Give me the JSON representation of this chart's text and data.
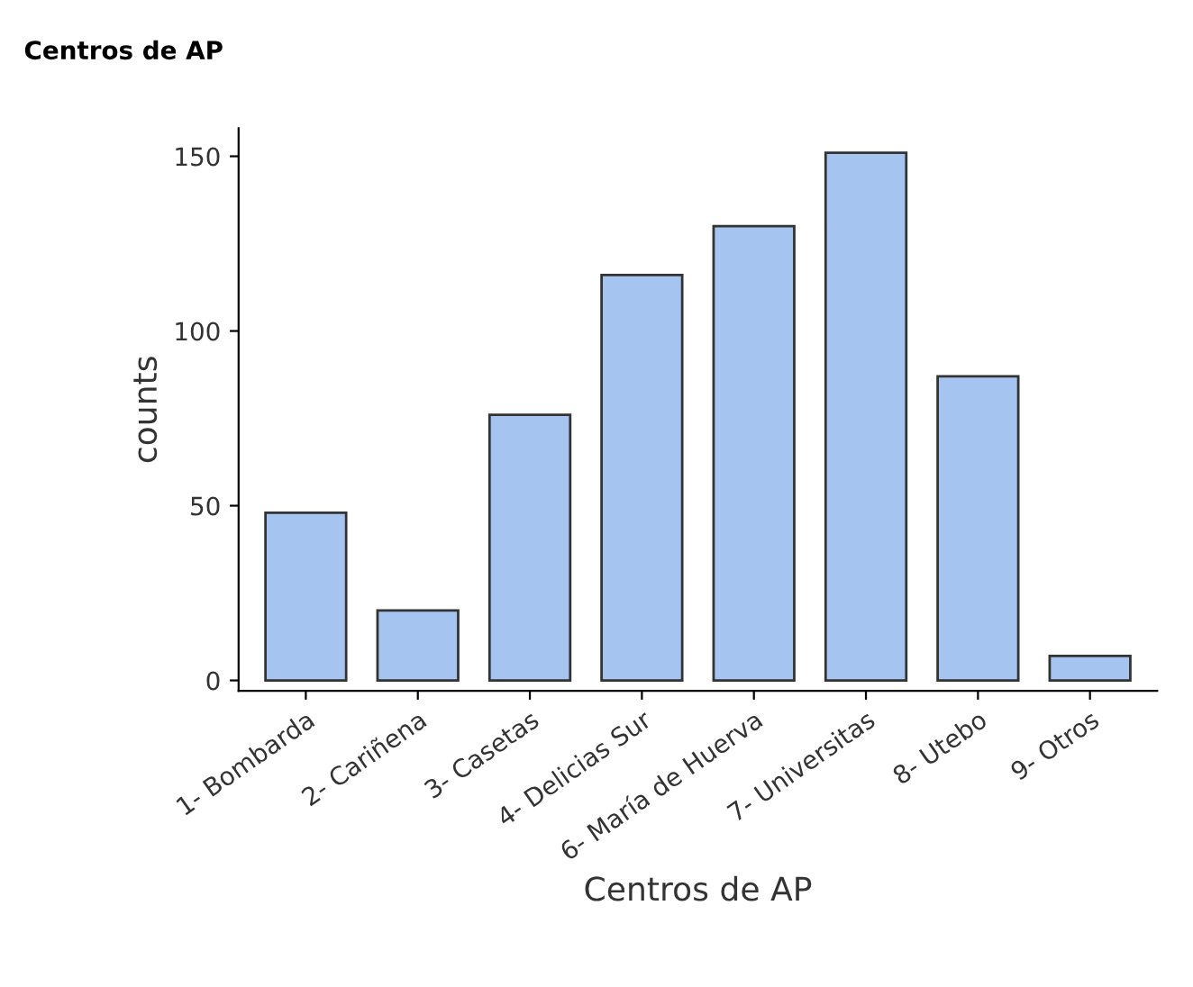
{
  "chart_data": {
    "type": "bar",
    "title": "Centros de AP",
    "xlabel": "Centros de AP",
    "ylabel": "counts",
    "categories": [
      "1- Bombarda",
      "2- Cariñena",
      "3- Casetas",
      "4- Delicias Sur",
      "6- María de Huerva",
      "7- Universitas",
      "8- Utebo",
      "9- Otros"
    ],
    "values": [
      48,
      20,
      76,
      116,
      130,
      151,
      87,
      7
    ],
    "color": "#a6c4f0",
    "ylim": [
      -3,
      158
    ],
    "yticks": [
      0,
      50,
      100,
      150
    ],
    "grid": false,
    "legend": false
  }
}
